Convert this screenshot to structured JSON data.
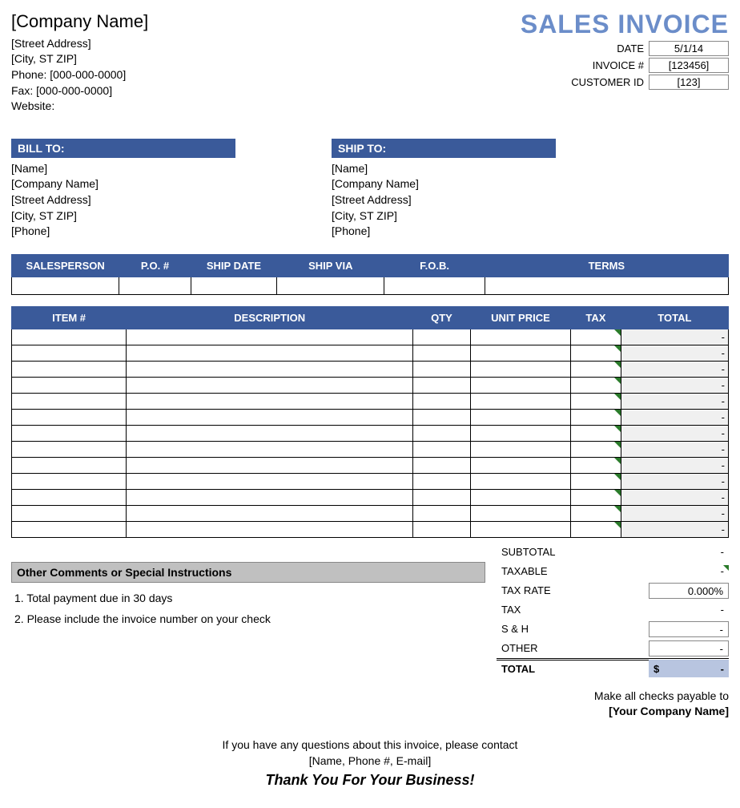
{
  "colors": {
    "header_bg": "#3a5a9a",
    "header_text": "#ffffff",
    "title_color": "#6b8dc9",
    "total_col_bg": "#f0f0f0",
    "comments_header_bg": "#c0c0c0",
    "grand_total_bg": "#b8c5e0",
    "tax_triangle": "#2a7a2a",
    "border": "#000000"
  },
  "company": {
    "name": "[Company Name]",
    "street": "[Street Address]",
    "city_st_zip": "[City, ST  ZIP]",
    "phone_label": "Phone: [000-000-0000]",
    "fax_label": "Fax: [000-000-0000]",
    "website_label": "Website:"
  },
  "title": "SALES INVOICE",
  "meta": {
    "date_label": "DATE",
    "date_value": "5/1/14",
    "invoice_label": "INVOICE #",
    "invoice_value": "[123456]",
    "customer_label": "CUSTOMER ID",
    "customer_value": "[123]"
  },
  "bill_to": {
    "header": "BILL TO:",
    "name": "[Name]",
    "company": "[Company Name]",
    "street": "[Street Address]",
    "city": "[City, ST  ZIP]",
    "phone": "[Phone]"
  },
  "ship_to": {
    "header": "SHIP TO:",
    "name": "[Name]",
    "company": "[Company Name]",
    "street": "[Street Address]",
    "city": "[City, ST  ZIP]",
    "phone": "[Phone]"
  },
  "ship_headers": {
    "salesperson": "SALESPERSON",
    "po": "P.O. #",
    "ship_date": "SHIP DATE",
    "ship_via": "SHIP VIA",
    "fob": "F.O.B.",
    "terms": "TERMS"
  },
  "item_headers": {
    "item": "ITEM #",
    "description": "DESCRIPTION",
    "qty": "QTY",
    "unit_price": "UNIT PRICE",
    "tax": "TAX",
    "total": "TOTAL"
  },
  "item_row_count": 13,
  "item_dash": "-",
  "comments": {
    "header": "Other Comments or Special Instructions",
    "line1": "1. Total payment due in 30 days",
    "line2": "2. Please include the invoice number on your check"
  },
  "totals": {
    "subtotal_label": "SUBTOTAL",
    "subtotal_value": "-",
    "taxable_label": "TAXABLE",
    "taxable_value": "-",
    "taxrate_label": "TAX RATE",
    "taxrate_value": "0.000%",
    "tax_label": "TAX",
    "tax_value": "-",
    "sh_label": "S & H",
    "sh_value": "-",
    "other_label": "OTHER",
    "other_value": "-",
    "total_label": "TOTAL",
    "total_currency": "$",
    "total_value": "-"
  },
  "payable": {
    "line1": "Make all checks payable to",
    "line2": "[Your Company Name]"
  },
  "footer": {
    "line1": "If you have any questions about this invoice, please contact",
    "line2": "[Name, Phone #, E-mail]",
    "thanks": "Thank You For Your Business!"
  }
}
